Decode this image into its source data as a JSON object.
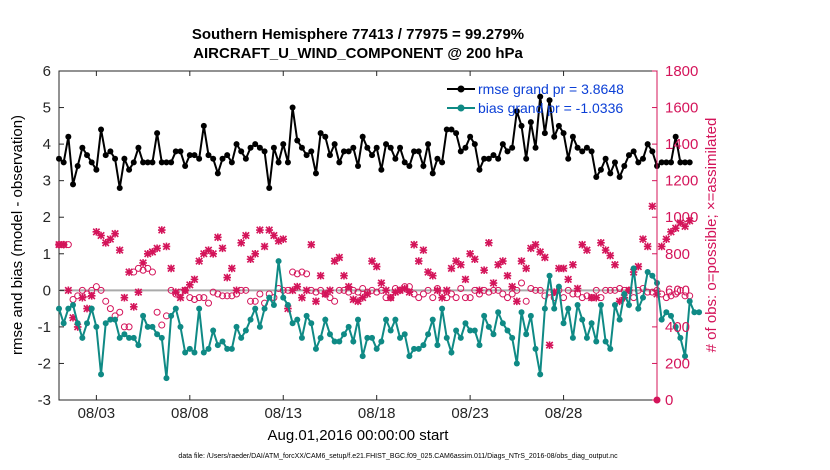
{
  "chart_data": {
    "type": "line",
    "title": "Southern Hemisphere 77413 / 77975 = 99.279%",
    "subtitle": "AIRCRAFT_U_WIND_COMPONENT @ 200 hPa",
    "xlabel": "Aug.01,2016 00:00:00 start",
    "ylabel_left": "rmse and bias (model - observation)",
    "ylabel_right": "# of obs: o=possible; ×=assimilated",
    "footnote": "data file: /Users/raeder/DAI/ATM_forcXX/CAM6_setup/f.e21.FHIST_BGC.f09_025.CAM6assim.011/Diags_NTrS_2016-08/obs_diag_output.nc",
    "x_ticks": [
      {
        "day": 3,
        "label": "08/03"
      },
      {
        "day": 8,
        "label": "08/08"
      },
      {
        "day": 13,
        "label": "08/13"
      },
      {
        "day": 18,
        "label": "08/18"
      },
      {
        "day": 23,
        "label": "08/23"
      },
      {
        "day": 28,
        "label": "08/28"
      }
    ],
    "xlim_days": [
      1,
      33
    ],
    "ylim_left": [
      -3,
      6
    ],
    "yticks_left": [
      -3,
      -2,
      -1,
      0,
      1,
      2,
      3,
      4,
      5,
      6
    ],
    "ylim_right": [
      0,
      1800
    ],
    "yticks_right": [
      0,
      200,
      400,
      600,
      800,
      1000,
      1200,
      1400,
      1600,
      1800
    ],
    "zero_line": 0,
    "legend": {
      "position": "top-right",
      "entries": [
        "rmse grand pr = 3.8648",
        "bias grand pr = -1.0336"
      ]
    },
    "colors": {
      "rmse": "#000000",
      "bias": "#0f8a85",
      "obs": "#d4145a",
      "zero_line": "#aaaaaa",
      "right_axis": "#d4145a"
    },
    "series": [
      {
        "name": "rmse",
        "axis": "left",
        "x_start_day": 1.0,
        "x_step_days": 0.25,
        "values": [
          3.6,
          3.5,
          4.2,
          2.9,
          3.4,
          3.9,
          3.7,
          3.5,
          3.3,
          4.4,
          3.7,
          3.8,
          3.6,
          2.8,
          3.6,
          3.3,
          3.5,
          3.9,
          3.5,
          3.5,
          3.5,
          4.3,
          3.5,
          3.5,
          3.5,
          3.8,
          3.8,
          3.4,
          3.7,
          3.7,
          3.6,
          4.5,
          3.7,
          3.6,
          3.2,
          3.6,
          3.7,
          3.5,
          4.0,
          3.8,
          3.6,
          3.9,
          4.0,
          3.9,
          3.8,
          2.8,
          3.9,
          3.5,
          4.0,
          3.5,
          5.0,
          4.1,
          3.9,
          3.7,
          3.8,
          3.2,
          4.3,
          4.2,
          3.7,
          4.0,
          3.5,
          3.8,
          3.8,
          3.9,
          3.4,
          4.2,
          3.9,
          3.7,
          3.9,
          3.3,
          4.0,
          3.9,
          3.6,
          3.9,
          3.5,
          3.4,
          3.8,
          3.8,
          3.4,
          4.0,
          3.2,
          3.6,
          3.5,
          4.4,
          4.4,
          4.3,
          3.8,
          3.9,
          4.2,
          4.0,
          3.3,
          3.6,
          3.6,
          3.7,
          3.6,
          4.0,
          3.8,
          3.9,
          4.9,
          4.5,
          3.6,
          4.6,
          3.9,
          5.3,
          4.3,
          5.2,
          4.2,
          4.5,
          4.3,
          3.6,
          4.2,
          3.9,
          3.8,
          3.9,
          3.8,
          3.1,
          3.3,
          3.6,
          3.2,
          3.5,
          3.1,
          3.4,
          3.7,
          3.8,
          3.5,
          3.6,
          4.0,
          3.8,
          3.4,
          3.5,
          3.5,
          3.5,
          4.2,
          3.5,
          3.5,
          3.5
        ]
      },
      {
        "name": "bias",
        "axis": "left",
        "x_start_day": 1.0,
        "x_step_days": 0.25,
        "values": [
          -0.5,
          -0.9,
          -0.5,
          -0.4,
          -0.9,
          -1.3,
          -0.9,
          -0.5,
          -1.0,
          -2.3,
          -0.9,
          -0.8,
          -0.8,
          -1.3,
          -1.2,
          -1.3,
          -1.3,
          -1.5,
          -0.7,
          -1.0,
          -1.0,
          -1.2,
          -1.3,
          -2.4,
          -0.7,
          -0.5,
          -1.0,
          -1.7,
          -1.6,
          -1.7,
          -0.5,
          -1.7,
          -1.6,
          -1.1,
          -1.5,
          -1.4,
          -1.6,
          -1.6,
          -1.0,
          -1.3,
          -1.1,
          -0.8,
          -0.5,
          -1.0,
          -0.5,
          -0.2,
          -0.4,
          0.8,
          -0.2,
          -0.4,
          -0.9,
          -0.8,
          -1.3,
          -0.7,
          -0.9,
          -1.6,
          -1.3,
          -0.8,
          -1.2,
          -1.4,
          -1.4,
          -1.2,
          -1.0,
          -1.4,
          -0.8,
          -1.8,
          -1.3,
          -1.3,
          -1.6,
          -1.4,
          -0.8,
          -1.1,
          -0.8,
          -1.3,
          -1.2,
          -1.8,
          -1.6,
          -1.6,
          -1.5,
          -1.2,
          -0.8,
          -1.5,
          -0.5,
          -1.3,
          -1.7,
          -1.1,
          -1.3,
          -0.9,
          -1.1,
          -1.1,
          -1.5,
          -0.7,
          -1.0,
          -1.2,
          -0.6,
          -0.9,
          -1.1,
          -1.3,
          -2.0,
          -0.6,
          -1.2,
          -0.7,
          -1.6,
          -2.3,
          -0.5,
          0.4,
          -0.5,
          0.1,
          -0.9,
          -0.5,
          -1.3,
          -0.4,
          -0.8,
          -1.3,
          -0.9,
          -1.4,
          -0.4,
          -1.4,
          -1.6,
          -0.4,
          -0.8,
          -0.1,
          -0.4,
          0.6,
          -0.5,
          -0.2,
          0.5,
          0.4,
          0.2,
          -0.8,
          -0.6,
          -0.7,
          -1.0,
          -1.3,
          -1.8,
          -0.3,
          -0.6,
          -0.6
        ]
      },
      {
        "name": "obs possible",
        "axis": "right",
        "marker": "o",
        "x_start_day": 1.0,
        "x_step_days": 0.25,
        "values": [
          850,
          850,
          850,
          550,
          570,
          600,
          580,
          600,
          620,
          600,
          540,
          500,
          460,
          480,
          400,
          400,
          700,
          720,
          710,
          720,
          700,
          480,
          410,
          460,
          600,
          580,
          590,
          600,
          560,
          550,
          560,
          560,
          530,
          590,
          580,
          570,
          570,
          570,
          580,
          600,
          600,
          540,
          540,
          580,
          530,
          580,
          560,
          610,
          600,
          600,
          700,
          690,
          700,
          690,
          600,
          590,
          600,
          580,
          560,
          540,
          600,
          600,
          590,
          600,
          590,
          610,
          590,
          600,
          590,
          600,
          560,
          560,
          610,
          600,
          620,
          620,
          580,
          560,
          580,
          600,
          560,
          610,
          580,
          560,
          580,
          560,
          610,
          560,
          560,
          600,
          580,
          600,
          590,
          600,
          600,
          580,
          560,
          580,
          600,
          640,
          540,
          610,
          600,
          600,
          570,
          590,
          560,
          600,
          560,
          600,
          580,
          580,
          560,
          570,
          560,
          600,
          560,
          600,
          600,
          600,
          610,
          600,
          600,
          560,
          600,
          610,
          590,
          590,
          600,
          580,
          560,
          570,
          580,
          600,
          570,
          570
        ]
      },
      {
        "name": "obs assimilated",
        "axis": "right",
        "marker": "x",
        "x_start_day": 1.0,
        "x_step_days": 0.25,
        "values": [
          850,
          850,
          600,
          450,
          400,
          560,
          500,
          570,
          920,
          900,
          860,
          880,
          910,
          820,
          560,
          700,
          510,
          590,
          750,
          800,
          810,
          830,
          930,
          840,
          720,
          590,
          560,
          600,
          630,
          660,
          760,
          800,
          820,
          800,
          890,
          830,
          670,
          720,
          600,
          860,
          900,
          770,
          800,
          930,
          840,
          930,
          900,
          870,
          880,
          500,
          600,
          620,
          560,
          600,
          850,
          540,
          680,
          580,
          600,
          760,
          780,
          680,
          620,
          550,
          540,
          560,
          580,
          760,
          730,
          640,
          600,
          560,
          590,
          600,
          610,
          590,
          850,
          760,
          820,
          700,
          680,
          600,
          560,
          600,
          720,
          760,
          740,
          660,
          800,
          770,
          600,
          710,
          860,
          640,
          740,
          760,
          680,
          620,
          540,
          760,
          720,
          830,
          850,
          810,
          780,
          300,
          590,
          720,
          720,
          660,
          740,
          610,
          850,
          820,
          560,
          560,
          860,
          820,
          790,
          740,
          540,
          560,
          600,
          700,
          730,
          880,
          840,
          1060,
          580,
          840,
          880,
          920,
          940,
          970,
          950,
          980
        ]
      }
    ]
  }
}
